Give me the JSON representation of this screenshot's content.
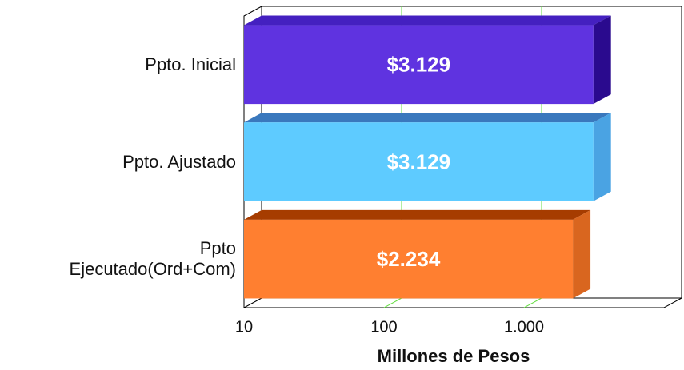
{
  "chart_data": {
    "type": "barh3d",
    "categories": [
      "Ppto. Inicial",
      "Ppto. Ajustado",
      "Ppto\nEjecutado(Ord+Com)"
    ],
    "values": [
      3129,
      3129,
      2234
    ],
    "value_labels": [
      "$3.129",
      "$3.129",
      "$2.234"
    ],
    "colors": [
      [
        "#5f33e0",
        "#4420c0",
        "#2a0a8e"
      ],
      [
        "#5ecbff",
        "#3a78bd",
        "#4aa3e3"
      ],
      [
        "#ff7f30",
        "#a63c00",
        "#d9661f"
      ]
    ],
    "xlabel": "Millones de Pesos",
    "xscale": "log",
    "xlim": [
      10,
      10000
    ],
    "xticks": [
      10,
      100,
      {
        "value": 1000,
        "label": "1.000"
      }
    ],
    "grid": true
  }
}
